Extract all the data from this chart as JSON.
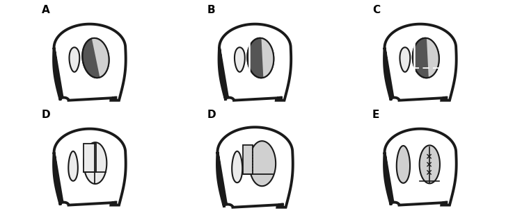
{
  "panels": [
    "A",
    "B",
    "C",
    "D",
    "D",
    "E"
  ],
  "figsize": [
    7.27,
    3.07
  ],
  "bg_color": "#ffffff",
  "label_fontsize": 11,
  "label_fontweight": "bold",
  "OC": "#1a1a1a",
  "LW": 2.8,
  "LG": "#d0d0d0",
  "MG": "#888888",
  "DG": "#555555",
  "VLG": "#ebebeb"
}
